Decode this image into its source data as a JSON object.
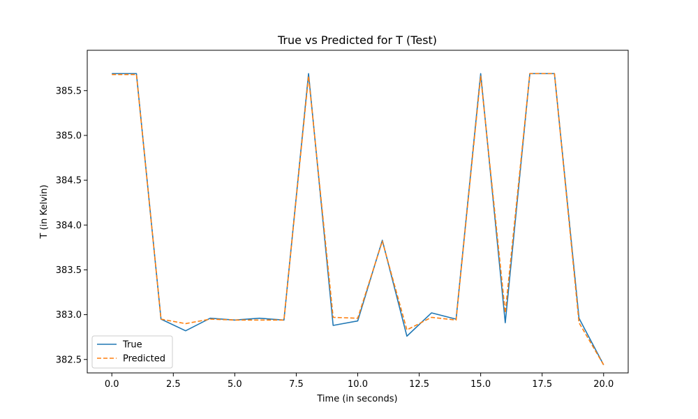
{
  "chart_data": {
    "type": "line",
    "title": "True vs Predicted for T (Test)",
    "xlabel": "Time (in seconds)",
    "ylabel": "T (in Kelvin)",
    "xlim": [
      -1.0,
      21.0
    ],
    "ylim": [
      382.35,
      385.95
    ],
    "xticks": [
      0.0,
      2.5,
      5.0,
      7.5,
      10.0,
      12.5,
      15.0,
      17.5,
      20.0
    ],
    "xtick_labels": [
      "0.0",
      "2.5",
      "5.0",
      "7.5",
      "10.0",
      "12.5",
      "15.0",
      "17.5",
      "20.0"
    ],
    "yticks": [
      382.5,
      383.0,
      383.5,
      384.0,
      384.5,
      385.0,
      385.5
    ],
    "ytick_labels": [
      "382.5",
      "383.0",
      "383.5",
      "384.0",
      "384.5",
      "385.0",
      "385.5"
    ],
    "grid": false,
    "legend_position": "lower-left",
    "x": [
      0,
      1,
      2,
      3,
      4,
      5,
      6,
      7,
      8,
      9,
      10,
      11,
      12,
      13,
      14,
      15,
      16,
      17,
      18,
      19,
      20
    ],
    "series": [
      {
        "name": "True",
        "color": "#1f77b4",
        "style": "solid",
        "values": [
          385.69,
          385.69,
          382.95,
          382.82,
          382.96,
          382.94,
          382.96,
          382.94,
          385.69,
          382.88,
          382.93,
          383.83,
          382.76,
          383.02,
          382.95,
          385.69,
          382.91,
          385.69,
          385.69,
          382.96,
          382.44
        ]
      },
      {
        "name": "Predicted",
        "color": "#ff7f0e",
        "style": "dashed",
        "values": [
          385.68,
          385.68,
          382.95,
          382.9,
          382.95,
          382.94,
          382.94,
          382.94,
          385.66,
          382.97,
          382.96,
          383.82,
          382.83,
          382.97,
          382.94,
          385.66,
          383.02,
          385.69,
          385.69,
          382.91,
          382.44
        ]
      }
    ]
  }
}
